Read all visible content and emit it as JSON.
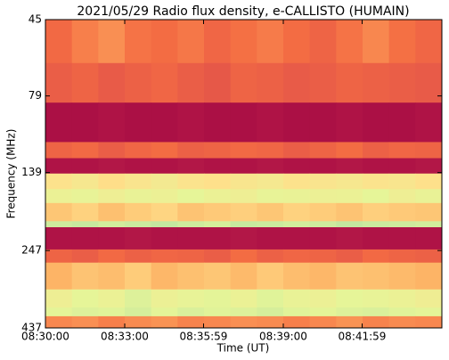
{
  "chart_data": {
    "type": "heatmap",
    "title": "2021/05/29  Radio flux density, e-CALLISTO (HUMAIN)",
    "xlabel": "Time (UT)",
    "ylabel": "Frequency (MHz)",
    "xlim": [
      "08:30:00",
      "08:45:00"
    ],
    "xticks": [
      "08:30:00",
      "08:33:00",
      "08:35:59",
      "08:39:00",
      "08:41:59"
    ],
    "ylim": [
      45,
      437
    ],
    "yticks": [
      45,
      79,
      139,
      247,
      437
    ],
    "yscale": "log",
    "y_inverted": true,
    "time_edges": [
      "08:30:00",
      "08:31:00",
      "08:32:00",
      "08:33:00",
      "08:34:00",
      "08:35:00",
      "08:36:00",
      "08:37:00",
      "08:38:00",
      "08:39:00",
      "08:40:00",
      "08:41:00",
      "08:42:00",
      "08:43:00",
      "08:44:00",
      "08:45:00"
    ],
    "frequency_edges": [
      45,
      62,
      83,
      111,
      125,
      140,
      157,
      174,
      199,
      208,
      245,
      270,
      329,
      376,
      401,
      437
    ],
    "zlim": [
      0,
      1
    ],
    "colormap": [
      "#9e0142",
      "#d53e4f",
      "#f46d43",
      "#fdae61",
      "#fee08b",
      "#e6f598",
      "#abdda4"
    ],
    "values": [
      [
        0.32,
        0.38,
        0.42,
        0.35,
        0.33,
        0.36,
        0.31,
        0.34,
        0.37,
        0.33,
        0.3,
        0.35,
        0.4,
        0.34,
        0.31
      ],
      [
        0.28,
        0.3,
        0.27,
        0.29,
        0.31,
        0.28,
        0.26,
        0.3,
        0.29,
        0.27,
        0.28,
        0.3,
        0.29,
        0.28,
        0.27
      ],
      [
        0.04,
        0.04,
        0.05,
        0.04,
        0.04,
        0.05,
        0.04,
        0.04,
        0.05,
        0.04,
        0.04,
        0.05,
        0.04,
        0.04,
        0.05
      ],
      [
        0.3,
        0.32,
        0.28,
        0.31,
        0.33,
        0.29,
        0.3,
        0.32,
        0.31,
        0.28,
        0.3,
        0.33,
        0.29,
        0.31,
        0.3
      ],
      [
        0.05,
        0.05,
        0.06,
        0.05,
        0.05,
        0.06,
        0.05,
        0.05,
        0.06,
        0.05,
        0.05,
        0.06,
        0.05,
        0.05,
        0.06
      ],
      [
        0.68,
        0.72,
        0.66,
        0.7,
        0.74,
        0.69,
        0.67,
        0.71,
        0.73,
        0.68,
        0.7,
        0.72,
        0.69,
        0.71,
        0.67
      ],
      [
        0.8,
        0.82,
        0.78,
        0.81,
        0.79,
        0.83,
        0.8,
        0.78,
        0.82,
        0.81,
        0.79,
        0.8,
        0.83,
        0.78,
        0.81
      ],
      [
        0.58,
        0.62,
        0.56,
        0.6,
        0.63,
        0.57,
        0.59,
        0.61,
        0.58,
        0.62,
        0.6,
        0.57,
        0.61,
        0.59,
        0.58
      ],
      [
        0.9,
        0.92,
        0.89,
        0.91,
        0.93,
        0.9,
        0.88,
        0.92,
        0.91,
        0.89,
        0.9,
        0.93,
        0.91,
        0.9,
        0.89
      ],
      [
        0.05,
        0.05,
        0.05,
        0.06,
        0.05,
        0.05,
        0.05,
        0.06,
        0.05,
        0.05,
        0.05,
        0.06,
        0.05,
        0.05,
        0.05
      ],
      [
        0.3,
        0.28,
        0.32,
        0.29,
        0.31,
        0.3,
        0.28,
        0.33,
        0.29,
        0.31,
        0.3,
        0.28,
        0.32,
        0.3,
        0.29
      ],
      [
        0.52,
        0.57,
        0.55,
        0.6,
        0.53,
        0.56,
        0.58,
        0.54,
        0.59,
        0.55,
        0.53,
        0.57,
        0.56,
        0.54,
        0.52
      ],
      [
        0.78,
        0.83,
        0.8,
        0.86,
        0.79,
        0.82,
        0.84,
        0.8,
        0.85,
        0.81,
        0.79,
        0.83,
        0.82,
        0.8,
        0.77
      ],
      [
        0.84,
        0.86,
        0.85,
        0.88,
        0.84,
        0.87,
        0.85,
        0.86,
        0.88,
        0.85,
        0.84,
        0.86,
        0.87,
        0.85,
        0.84
      ],
      [
        0.4,
        0.42,
        0.38,
        0.41,
        0.43,
        0.39,
        0.4,
        0.42,
        0.41,
        0.38,
        0.4,
        0.43,
        0.39,
        0.41,
        0.4
      ]
    ]
  }
}
